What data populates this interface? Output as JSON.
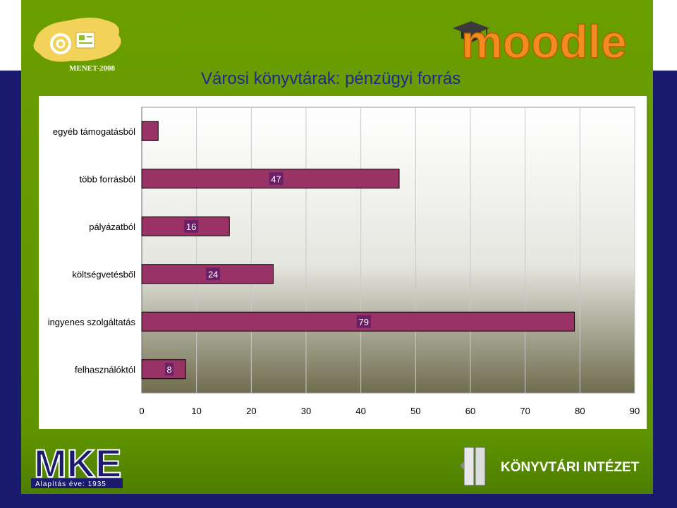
{
  "slide": {
    "title": "Városi könyvtárak: pénzügyi forrás"
  },
  "logos": {
    "menet_text": "MENET-2008",
    "moodle_text": "moodle",
    "mke_text": "MKE",
    "mke_subtitle": "Alapítás éve: 1935",
    "ki_text": "KÖNYVTÁRI INTÉZET"
  },
  "colors": {
    "bar_fill": "#993366",
    "bar_stroke": "#000000",
    "label_box": "#6b1f66",
    "title": "#1f2a8c",
    "panel_green": "#6a9e00",
    "frame_navy": "#1a1a6e",
    "plot_gradient_top": "#ffffff",
    "plot_gradient_bottom": "#6f6d4e"
  },
  "chart_data": {
    "type": "bar",
    "orientation": "horizontal",
    "title": "Városi könyvtárak: pénzügyi forrás",
    "categories": [
      "egyéb támogatásból",
      "több forrásból",
      "pályázatból",
      "költségvetésből",
      "ingyenes szolgáltatás",
      "felhasználóktól"
    ],
    "values": [
      3,
      47,
      16,
      24,
      79,
      8
    ],
    "data_labels": [
      "",
      "47",
      "16",
      "24",
      "79",
      "8"
    ],
    "xlim": [
      0,
      90
    ],
    "xticks": [
      0,
      10,
      20,
      30,
      40,
      50,
      60,
      70,
      80,
      90
    ],
    "xlabel": "",
    "ylabel": "",
    "grid": "vertical",
    "legend": "none"
  }
}
